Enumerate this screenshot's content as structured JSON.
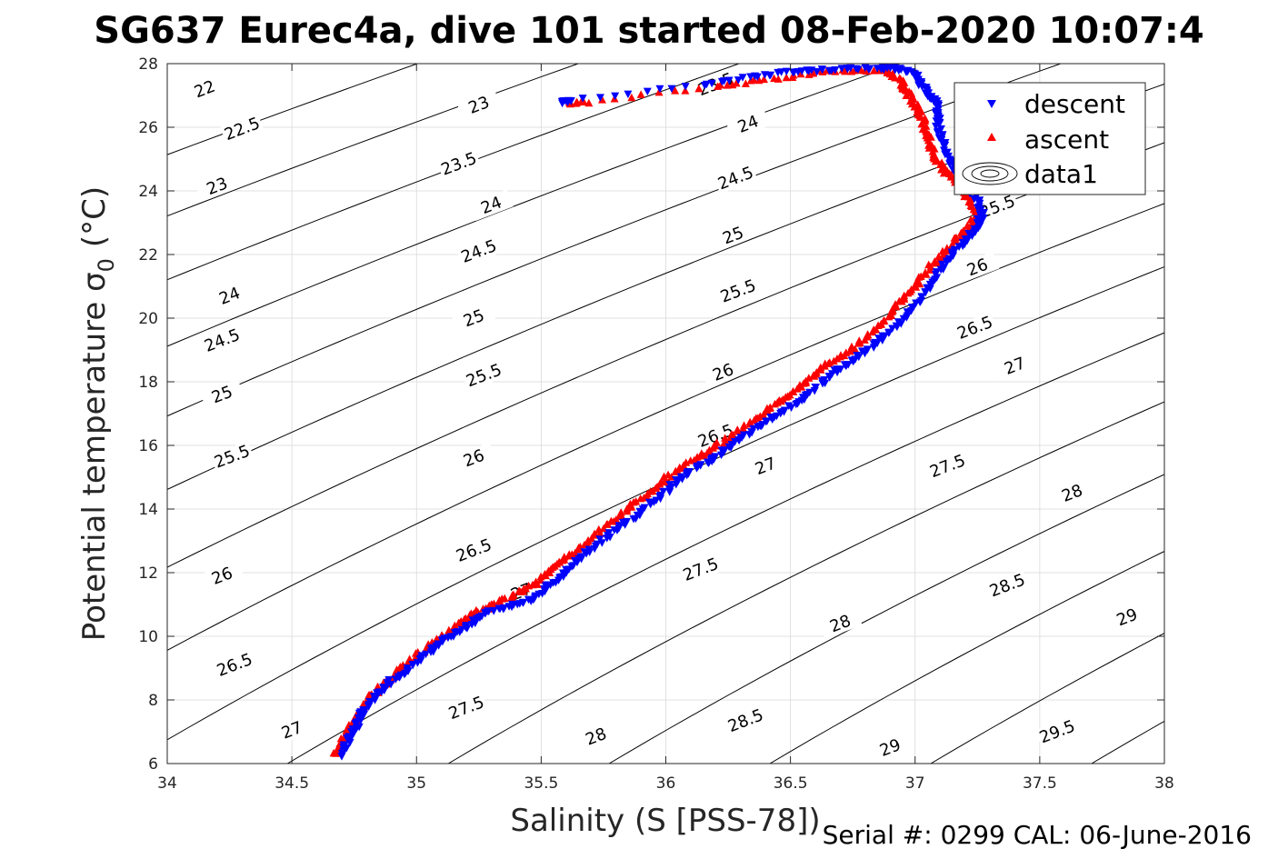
{
  "chart_data": {
    "type": "scatter",
    "title": "SG637 Eurec4a, dive 101 started 08-Feb-2020 10:07:4",
    "xlabel": "Salinity (S [PSS-78])",
    "ylabel": "Potential temperature σ0 (°C)",
    "ylabel_main": "Potential temperature σ",
    "ylabel_sub": "0",
    "ylabel_unit": "(°C)",
    "xlim": [
      34,
      38
    ],
    "ylim": [
      6,
      28
    ],
    "xticks": [
      "34",
      "34.5",
      "35",
      "35.5",
      "36",
      "36.5",
      "37",
      "37.5",
      "38"
    ],
    "yticks": [
      "6",
      "8",
      "10",
      "12",
      "14",
      "16",
      "18",
      "20",
      "22",
      "24",
      "26",
      "28"
    ],
    "grid": true,
    "legend_position": "top-right",
    "legend": [
      "descent",
      "ascent",
      "data1"
    ],
    "footer": "Serial #: 0299 CAL: 06-June-2016",
    "colors": {
      "descent": "#0000ff",
      "ascent": "#ff0000",
      "contour": "#000000",
      "grid": "#d9d9d9"
    },
    "series": [
      {
        "name": "descent",
        "marker": "triangle-down",
        "profile": [
          [
            34.69,
            6.2
          ],
          [
            34.72,
            6.6
          ],
          [
            34.75,
            7.0
          ],
          [
            34.77,
            7.4
          ],
          [
            34.8,
            7.8
          ],
          [
            34.85,
            8.2
          ],
          [
            34.9,
            8.6
          ],
          [
            34.97,
            9.0
          ],
          [
            35.05,
            9.5
          ],
          [
            35.12,
            9.9
          ],
          [
            35.2,
            10.3
          ],
          [
            35.27,
            10.7
          ],
          [
            35.35,
            10.9
          ],
          [
            35.45,
            11.1
          ],
          [
            35.52,
            11.5
          ],
          [
            35.58,
            11.9
          ],
          [
            35.65,
            12.4
          ],
          [
            35.73,
            12.9
          ],
          [
            35.81,
            13.4
          ],
          [
            35.9,
            13.9
          ],
          [
            35.98,
            14.4
          ],
          [
            36.05,
            14.9
          ],
          [
            36.12,
            15.3
          ],
          [
            36.2,
            15.6
          ],
          [
            36.28,
            16.1
          ],
          [
            36.36,
            16.5
          ],
          [
            36.44,
            16.9
          ],
          [
            36.52,
            17.3
          ],
          [
            36.6,
            17.8
          ],
          [
            36.68,
            18.3
          ],
          [
            36.76,
            18.7
          ],
          [
            36.84,
            19.2
          ],
          [
            36.92,
            19.7
          ],
          [
            36.99,
            20.3
          ],
          [
            37.05,
            20.9
          ],
          [
            37.1,
            21.5
          ],
          [
            37.15,
            22.0
          ],
          [
            37.2,
            22.4
          ],
          [
            37.25,
            22.9
          ],
          [
            37.27,
            23.3
          ],
          [
            37.24,
            23.8
          ],
          [
            37.2,
            24.3
          ],
          [
            37.15,
            24.8
          ],
          [
            37.12,
            25.3
          ],
          [
            37.1,
            25.8
          ],
          [
            37.09,
            26.3
          ],
          [
            37.1,
            26.7
          ],
          [
            37.05,
            27.0
          ],
          [
            37.02,
            27.4
          ],
          [
            36.99,
            27.7
          ],
          [
            36.92,
            27.85
          ],
          [
            36.8,
            27.85
          ],
          [
            36.65,
            27.8
          ],
          [
            36.52,
            27.75
          ],
          [
            36.35,
            27.6
          ],
          [
            36.15,
            27.35
          ],
          [
            35.62,
            26.85
          ],
          [
            35.57,
            26.75
          ]
        ]
      },
      {
        "name": "ascent",
        "marker": "triangle-up",
        "profile": [
          [
            34.68,
            6.3
          ],
          [
            34.7,
            6.7
          ],
          [
            34.73,
            7.1
          ],
          [
            34.76,
            7.5
          ],
          [
            34.79,
            7.9
          ],
          [
            34.84,
            8.3
          ],
          [
            34.9,
            8.7
          ],
          [
            34.96,
            9.1
          ],
          [
            35.03,
            9.6
          ],
          [
            35.1,
            10.0
          ],
          [
            35.18,
            10.5
          ],
          [
            35.25,
            10.8
          ],
          [
            35.33,
            11.1
          ],
          [
            35.42,
            11.4
          ],
          [
            35.5,
            11.8
          ],
          [
            35.55,
            12.2
          ],
          [
            35.62,
            12.6
          ],
          [
            35.7,
            13.1
          ],
          [
            35.78,
            13.6
          ],
          [
            35.86,
            14.1
          ],
          [
            35.94,
            14.6
          ],
          [
            36.02,
            15.1
          ],
          [
            36.1,
            15.5
          ],
          [
            36.17,
            15.8
          ],
          [
            36.24,
            16.2
          ],
          [
            36.32,
            16.6
          ],
          [
            36.4,
            17.1
          ],
          [
            36.48,
            17.5
          ],
          [
            36.56,
            18.0
          ],
          [
            36.64,
            18.5
          ],
          [
            36.72,
            18.9
          ],
          [
            36.8,
            19.4
          ],
          [
            36.87,
            19.9
          ],
          [
            36.94,
            20.5
          ],
          [
            37.0,
            21.0
          ],
          [
            37.06,
            21.6
          ],
          [
            37.12,
            22.1
          ],
          [
            37.18,
            22.6
          ],
          [
            37.23,
            23.0
          ],
          [
            37.25,
            23.4
          ],
          [
            37.2,
            23.9
          ],
          [
            37.15,
            24.4
          ],
          [
            37.1,
            24.8
          ],
          [
            37.07,
            25.3
          ],
          [
            37.05,
            25.8
          ],
          [
            37.03,
            26.3
          ],
          [
            37.0,
            26.7
          ],
          [
            36.97,
            27.1
          ],
          [
            36.95,
            27.4
          ],
          [
            36.9,
            27.75
          ],
          [
            36.75,
            27.8
          ],
          [
            36.62,
            27.75
          ],
          [
            36.4,
            27.5
          ],
          [
            36.2,
            27.3
          ],
          [
            35.68,
            26.8
          ],
          [
            35.6,
            26.75
          ]
        ]
      }
    ],
    "density_contours": {
      "name": "data1",
      "levels": [
        "22",
        "22.5",
        "23",
        "23.5",
        "24",
        "24.5",
        "25",
        "25.5",
        "26",
        "26.5",
        "27",
        "27.5",
        "28",
        "28.5",
        "29",
        "29.5"
      ],
      "sigma": [
        22,
        22.5,
        23,
        23.5,
        24,
        24.5,
        25,
        25.5,
        26,
        26.5,
        27,
        27.5,
        28,
        28.5,
        29,
        29.5
      ],
      "labels": [
        {
          "text": "22",
          "s": 34.15,
          "t": 27.2
        },
        {
          "text": "22.5",
          "s": 34.3,
          "t": 25.95
        },
        {
          "text": "23",
          "s": 34.2,
          "t": 24.15
        },
        {
          "text": "23",
          "s": 35.25,
          "t": 26.7
        },
        {
          "text": "23.5",
          "s": 36.2,
          "t": 27.35
        },
        {
          "text": "23.5",
          "s": 35.17,
          "t": 24.85
        },
        {
          "text": "24",
          "s": 34.25,
          "t": 20.7
        },
        {
          "text": "24",
          "s": 35.3,
          "t": 23.55
        },
        {
          "text": "24",
          "s": 36.33,
          "t": 26.1
        },
        {
          "text": "24.5",
          "s": 34.22,
          "t": 19.3
        },
        {
          "text": "24.5",
          "s": 35.25,
          "t": 22.1
        },
        {
          "text": "24.5",
          "s": 36.28,
          "t": 24.4
        },
        {
          "text": "25",
          "s": 34.22,
          "t": 17.6
        },
        {
          "text": "25",
          "s": 35.23,
          "t": 20.0
        },
        {
          "text": "25",
          "s": 36.27,
          "t": 22.6
        },
        {
          "text": "25.5",
          "s": 34.26,
          "t": 15.65
        },
        {
          "text": "25.5",
          "s": 35.27,
          "t": 18.2
        },
        {
          "text": "25.5",
          "s": 36.29,
          "t": 20.85
        },
        {
          "text": "25.5",
          "s": 37.33,
          "t": 23.5
        },
        {
          "text": "26",
          "s": 34.22,
          "t": 11.9
        },
        {
          "text": "26",
          "s": 35.23,
          "t": 15.6
        },
        {
          "text": "26",
          "s": 36.23,
          "t": 18.3
        },
        {
          "text": "26",
          "s": 37.25,
          "t": 21.6
        },
        {
          "text": "26.5",
          "s": 34.27,
          "t": 9.1
        },
        {
          "text": "26.5",
          "s": 35.23,
          "t": 12.7
        },
        {
          "text": "26.5",
          "s": 36.2,
          "t": 16.3
        },
        {
          "text": "26.5",
          "s": 37.24,
          "t": 19.7
        },
        {
          "text": "27",
          "s": 34.5,
          "t": 7.05
        },
        {
          "text": "27",
          "s": 35.42,
          "t": 11.4
        },
        {
          "text": "27",
          "s": 36.4,
          "t": 15.35
        },
        {
          "text": "27",
          "s": 37.4,
          "t": 18.5
        },
        {
          "text": "27.5",
          "s": 35.2,
          "t": 7.75
        },
        {
          "text": "27.5",
          "s": 36.14,
          "t": 12.1
        },
        {
          "text": "27.5",
          "s": 37.13,
          "t": 15.35
        },
        {
          "text": "28",
          "s": 35.72,
          "t": 6.85
        },
        {
          "text": "28",
          "s": 36.7,
          "t": 10.4
        },
        {
          "text": "28",
          "s": 37.63,
          "t": 14.5
        },
        {
          "text": "28.5",
          "s": 36.32,
          "t": 7.35
        },
        {
          "text": "28.5",
          "s": 37.37,
          "t": 11.6
        },
        {
          "text": "29",
          "s": 36.9,
          "t": 6.5
        },
        {
          "text": "29",
          "s": 37.85,
          "t": 10.6
        },
        {
          "text": "29.5",
          "s": 37.57,
          "t": 7.0
        }
      ]
    }
  }
}
